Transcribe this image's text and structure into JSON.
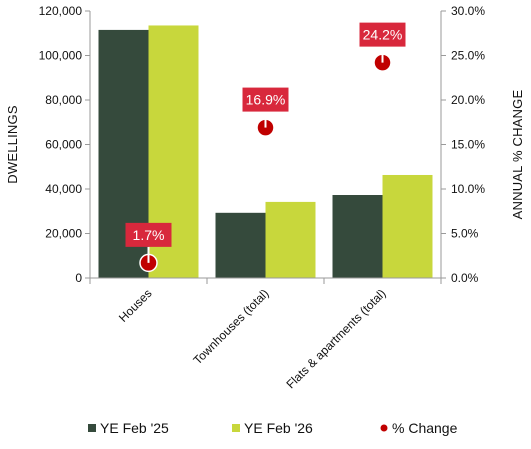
{
  "chart_data": {
    "type": "bar",
    "categories": [
      "Houses",
      "Townhouses (total)",
      "Flats & apartments (total)"
    ],
    "series": [
      {
        "name": "YE Feb '25",
        "type": "bar",
        "axis": "left",
        "color": "#354a3c",
        "values": [
          111500,
          29300,
          37300
        ]
      },
      {
        "name": "YE Feb '26",
        "type": "bar",
        "axis": "left",
        "color": "#c8d73c",
        "values": [
          113500,
          34200,
          46300
        ]
      },
      {
        "name": "% Change",
        "type": "scatter",
        "axis": "right",
        "color": "#c00000",
        "values": [
          1.7,
          16.9,
          24.2
        ],
        "labels": [
          "1.7%",
          "16.9%",
          "24.2%"
        ],
        "label_color": "#d8283c"
      }
    ],
    "ylabel": "DWELLINGS",
    "ylabel_right": "ANNUAL % CHANGE",
    "ylim": [
      0,
      120000
    ],
    "ylim_right": [
      0,
      30
    ],
    "yticks": [
      "0",
      "20,000",
      "40,000",
      "60,000",
      "80,000",
      "100,000",
      "120,000"
    ],
    "yticks_right": [
      "0.0%",
      "5.0%",
      "10.0%",
      "15.0%",
      "20.0%",
      "25.0%",
      "30.0%"
    ],
    "grid": false,
    "legend_position": "bottom"
  }
}
